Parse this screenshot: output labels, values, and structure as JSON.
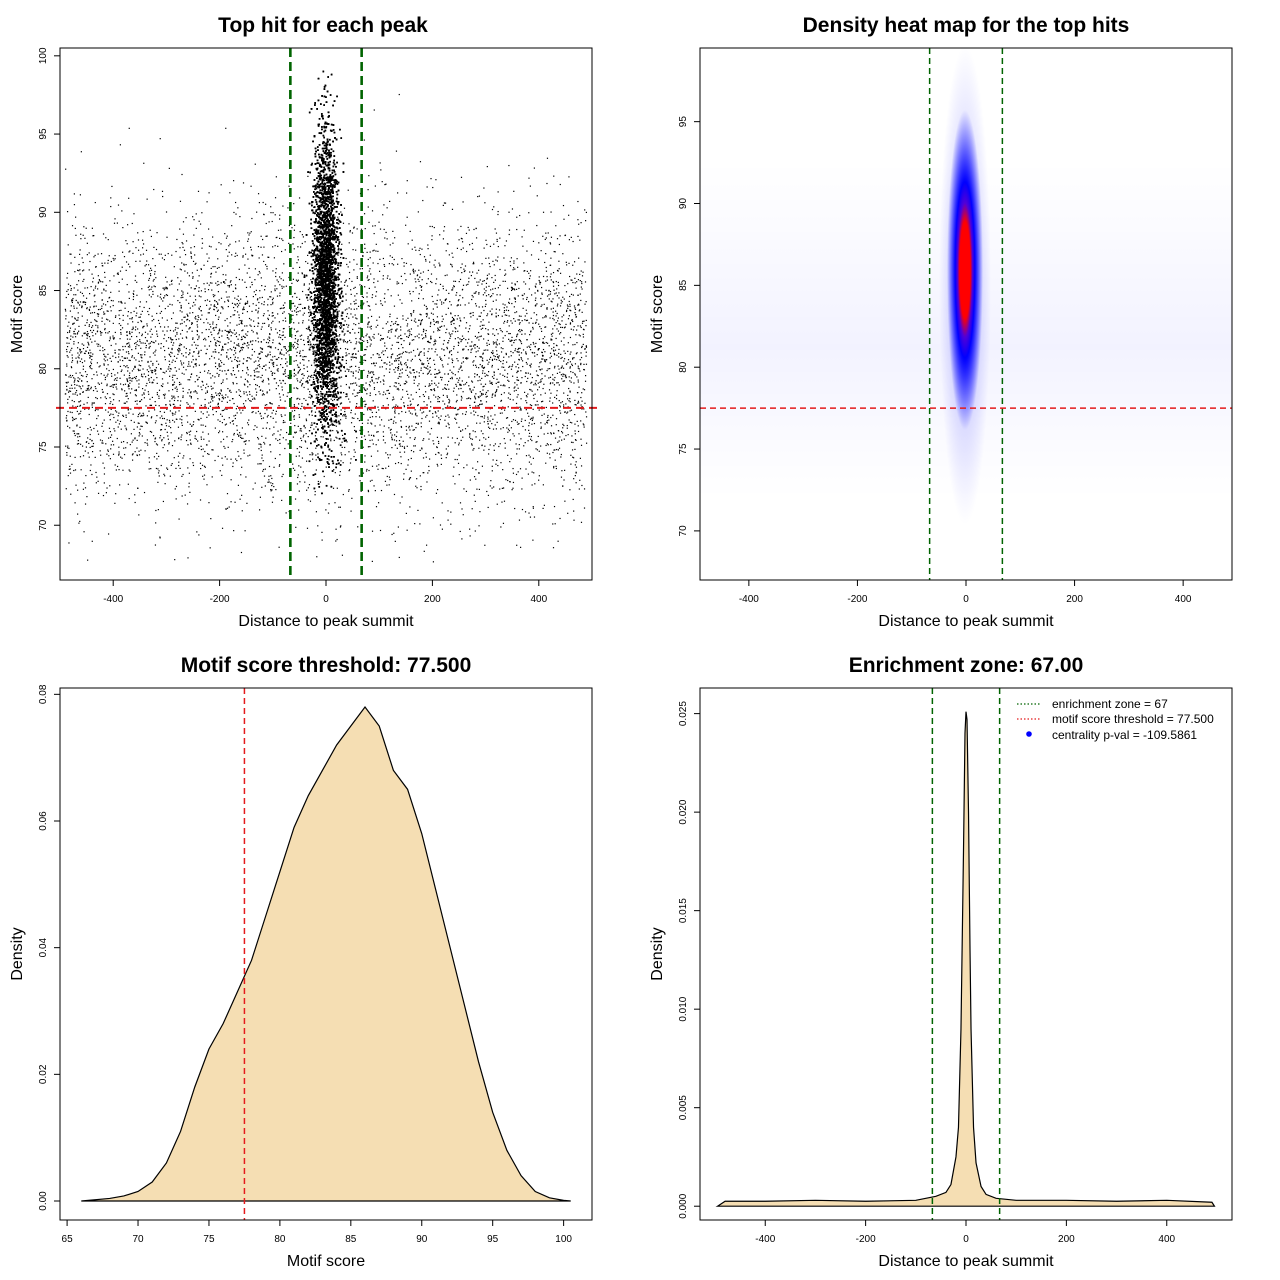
{
  "chart_data": [
    {
      "type": "scatter",
      "title": "Top hit for each peak",
      "xlabel": "Distance to peak summit",
      "ylabel": "Motif score",
      "xlim": [
        -500,
        500
      ],
      "ylim": [
        66.5,
        100.5
      ],
      "xticks": [
        -400,
        -200,
        0,
        200,
        400
      ],
      "yticks": [
        70,
        75,
        80,
        85,
        90,
        95,
        100
      ],
      "vlines": [
        -67,
        67
      ],
      "hline": 77.5,
      "colors": {
        "points": "#000000",
        "vline": "#006400",
        "hline": "#e41a1c"
      },
      "background_cloud": {
        "x_range": [
          -490,
          490
        ],
        "y_mean": 80.5,
        "y_sd": 4.5
      },
      "central_cluster": {
        "x_mean": 0,
        "x_sd": 12,
        "y_mean": 85.5,
        "y_sd": 4.8,
        "y_max": 99.2
      }
    },
    {
      "type": "heatmap",
      "title": "Density heat map for the top hits",
      "xlabel": "Distance to peak summit",
      "ylabel": "Motif score",
      "xlim": [
        -490,
        490
      ],
      "ylim": [
        67,
        99.5
      ],
      "xticks": [
        -400,
        -200,
        0,
        200,
        400
      ],
      "yticks": [
        70,
        75,
        80,
        85,
        90,
        95
      ],
      "vlines": [
        -67,
        67
      ],
      "hline": 77.5,
      "density_peak": {
        "x": 0,
        "y": 87.5
      },
      "colors": {
        "low": "#ffffff",
        "mid": "#0000ff",
        "high": "#ff0000",
        "vline": "#006400",
        "hline": "#e41a1c"
      }
    },
    {
      "type": "area",
      "title": "Motif score threshold: 77.500",
      "xlabel": "Motif score",
      "ylabel": "Density",
      "xlim": [
        64.5,
        102
      ],
      "ylim": [
        -0.003,
        0.081
      ],
      "xticks": [
        65,
        70,
        75,
        80,
        85,
        90,
        95,
        100
      ],
      "yticks": [
        0.0,
        0.02,
        0.04,
        0.06,
        0.08
      ],
      "ytick_labels": [
        "0.00",
        "0.02",
        "0.04",
        "0.06",
        "0.08"
      ],
      "vline": 77.5,
      "x": [
        66,
        68,
        69,
        70,
        71,
        72,
        73,
        74,
        75,
        76,
        77,
        78,
        79,
        80,
        81,
        82,
        83,
        84,
        85,
        86,
        87,
        88,
        89,
        90,
        91,
        92,
        93,
        94,
        95,
        96,
        97,
        98,
        99,
        100,
        100.5
      ],
      "y": [
        0.0,
        0.0004,
        0.0008,
        0.0015,
        0.003,
        0.006,
        0.011,
        0.018,
        0.024,
        0.028,
        0.033,
        0.038,
        0.045,
        0.052,
        0.059,
        0.064,
        0.068,
        0.072,
        0.075,
        0.078,
        0.075,
        0.068,
        0.065,
        0.058,
        0.049,
        0.04,
        0.031,
        0.022,
        0.014,
        0.008,
        0.004,
        0.0015,
        0.0005,
        0.0001,
        0.0
      ]
    },
    {
      "type": "area",
      "title": "Enrichment zone: 67.00",
      "xlabel": "Distance to peak summit",
      "ylabel": "Density",
      "xlim": [
        -530,
        530
      ],
      "ylim": [
        -0.0007,
        0.0263
      ],
      "xticks": [
        -400,
        -200,
        0,
        200,
        400
      ],
      "yticks": [
        0.0,
        0.005,
        0.01,
        0.015,
        0.02,
        0.025
      ],
      "ytick_labels": [
        "0.000",
        "0.005",
        "0.010",
        "0.015",
        "0.020",
        "0.025"
      ],
      "vlines": [
        -67,
        67
      ],
      "x": [
        -495,
        -480,
        -400,
        -300,
        -200,
        -100,
        -60,
        -40,
        -30,
        -20,
        -15,
        -10,
        -5,
        -2,
        0,
        2,
        5,
        8,
        10,
        15,
        20,
        30,
        40,
        60,
        100,
        200,
        300,
        400,
        490,
        495
      ],
      "y": [
        0.0,
        0.00025,
        0.00025,
        0.0003,
        0.00025,
        0.0003,
        0.0005,
        0.0007,
        0.0011,
        0.0025,
        0.004,
        0.009,
        0.018,
        0.024,
        0.0251,
        0.0247,
        0.02,
        0.013,
        0.009,
        0.004,
        0.0022,
        0.001,
        0.0006,
        0.0004,
        0.0003,
        0.0003,
        0.00025,
        0.0003,
        0.0002,
        0.0
      ],
      "legend": {
        "placement": "top-right",
        "entries": [
          {
            "label": "enrichment zone = 67",
            "color": "#006400",
            "symbol": "dotted-line"
          },
          {
            "label": "motif score threshold = 77.500",
            "color": "#e41a1c",
            "symbol": "dotted-line"
          },
          {
            "label": "centrality p-val = -109.5861",
            "color": "#0000ff",
            "symbol": "point"
          }
        ]
      }
    }
  ]
}
